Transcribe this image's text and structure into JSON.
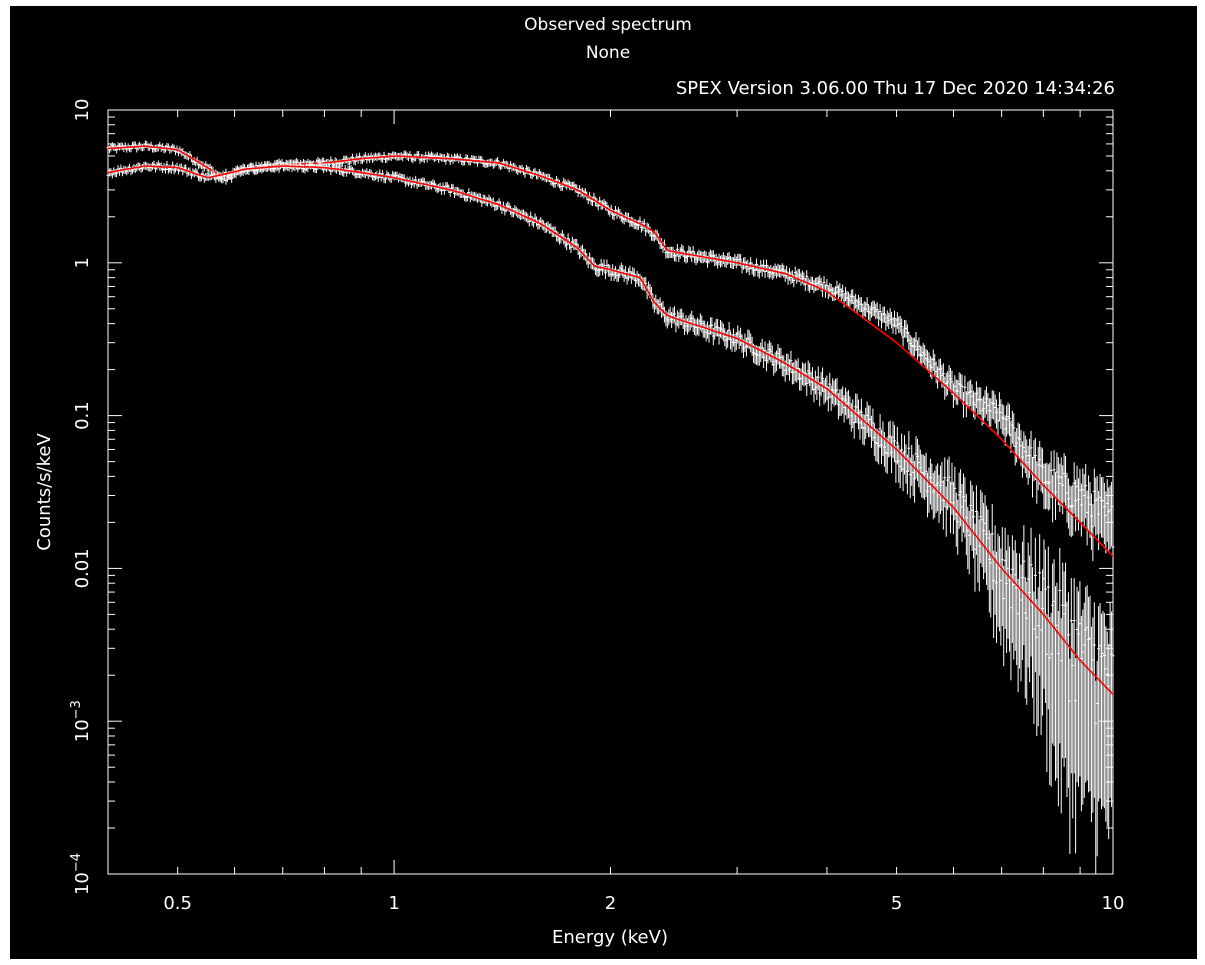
{
  "header": {
    "title": "Observed spectrum",
    "subtitle": "None",
    "version_stamp": "SPEX Version 3.06.00   Thu 17 Dec 2020 14:34:26"
  },
  "colors": {
    "background": "#000000",
    "axes": "#ffffff",
    "data": "#ffffff",
    "model": "#ff0000"
  },
  "chart_data": {
    "type": "line",
    "xlabel": "Energy (keV)",
    "ylabel": "Counts/s/keV",
    "xscale": "log",
    "yscale": "log",
    "xlim": [
      0.4,
      10
    ],
    "ylim": [
      0.0001,
      10
    ],
    "grid": false,
    "x_ticks": [
      {
        "value": 0.5,
        "label": "0.5"
      },
      {
        "value": 1,
        "label": "1"
      },
      {
        "value": 2,
        "label": "2"
      },
      {
        "value": 5,
        "label": "5"
      },
      {
        "value": 10,
        "label": "10"
      }
    ],
    "y_ticks": [
      {
        "value": 10,
        "label": "10"
      },
      {
        "value": 1,
        "label": "1"
      },
      {
        "value": 0.1,
        "label": "0.1"
      },
      {
        "value": 0.01,
        "label": "0.01"
      },
      {
        "value": 0.001,
        "label": "10",
        "exponent": "−3"
      },
      {
        "value": 0.0001,
        "label": "10",
        "exponent": "−4"
      }
    ],
    "series": [
      {
        "style": "crosses-with-model",
        "x": [
          0.4,
          0.45,
          0.5,
          0.55,
          0.58,
          0.62,
          0.7,
          0.8,
          0.9,
          1.0,
          1.2,
          1.4,
          1.6,
          1.8,
          2.0,
          2.2,
          2.3,
          2.4,
          3.0,
          3.5,
          4.0,
          5.0,
          6.0,
          7.0,
          8.0,
          9.0,
          10.0
        ],
        "data": [
          5.6,
          5.8,
          5.5,
          4.2,
          3.5,
          4.1,
          4.4,
          4.5,
          4.8,
          5.0,
          4.8,
          4.5,
          3.7,
          3.0,
          2.2,
          1.8,
          1.55,
          1.2,
          1.0,
          0.85,
          0.7,
          0.4,
          0.15,
          0.1,
          0.04,
          0.03,
          0.02
        ],
        "model": [
          5.6,
          5.8,
          5.5,
          4.2,
          3.6,
          4.1,
          4.4,
          4.5,
          4.8,
          5.0,
          4.8,
          4.5,
          3.7,
          3.0,
          2.2,
          1.8,
          1.6,
          1.2,
          1.0,
          0.85,
          0.65,
          0.3,
          0.14,
          0.07,
          0.035,
          0.02,
          0.012
        ]
      },
      {
        "style": "crosses-with-model",
        "x": [
          0.4,
          0.45,
          0.5,
          0.55,
          0.58,
          0.62,
          0.7,
          0.8,
          0.9,
          1.0,
          1.2,
          1.4,
          1.6,
          1.8,
          1.9,
          2.0,
          2.2,
          2.3,
          2.4,
          3.0,
          3.5,
          4.0,
          5.0,
          6.0,
          7.0,
          8.0,
          9.0,
          10.0
        ],
        "data": [
          3.9,
          4.3,
          4.2,
          3.6,
          3.8,
          4.1,
          4.3,
          4.2,
          3.9,
          3.6,
          3.0,
          2.4,
          1.8,
          1.25,
          0.95,
          0.9,
          0.8,
          0.55,
          0.45,
          0.32,
          0.22,
          0.15,
          0.06,
          0.03,
          0.01,
          0.006,
          0.003,
          0.002
        ],
        "model": [
          3.9,
          4.3,
          4.2,
          3.6,
          3.8,
          4.1,
          4.3,
          4.2,
          3.9,
          3.6,
          3.0,
          2.4,
          1.8,
          1.25,
          0.95,
          0.9,
          0.8,
          0.55,
          0.45,
          0.32,
          0.22,
          0.15,
          0.06,
          0.025,
          0.01,
          0.005,
          0.0025,
          0.0015
        ]
      }
    ]
  }
}
